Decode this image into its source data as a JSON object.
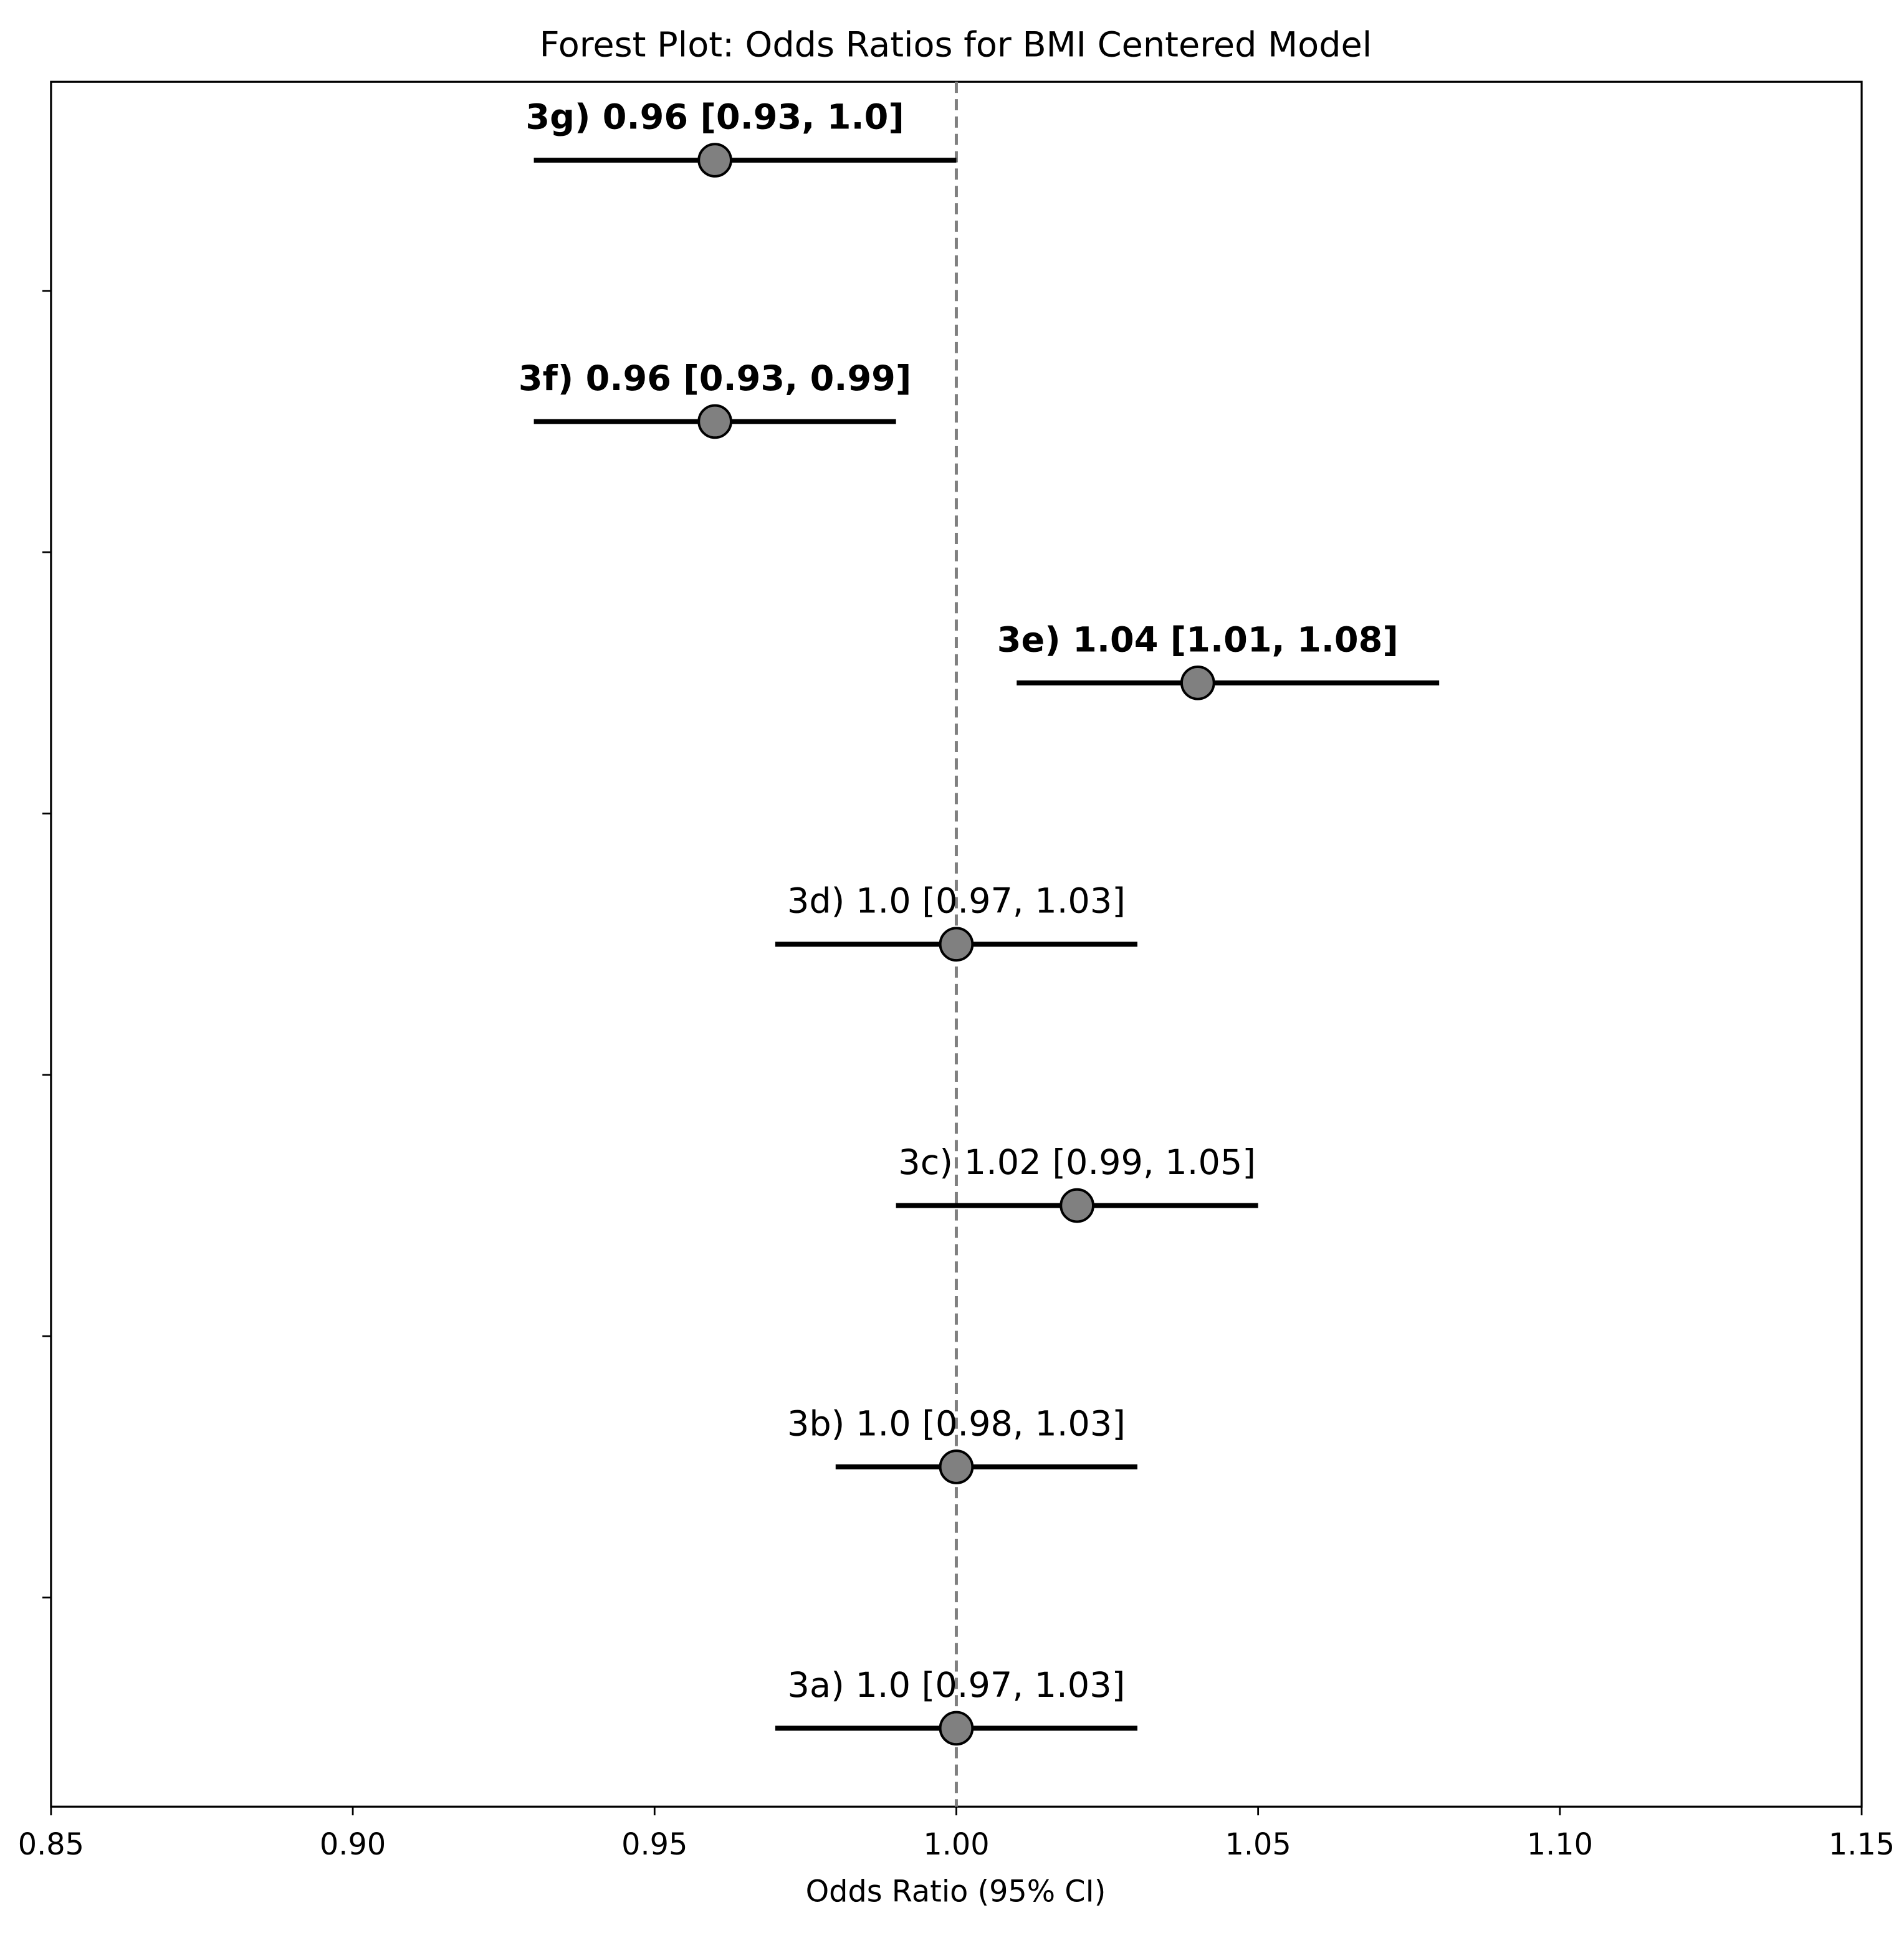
{
  "chart_data": {
    "type": "forest",
    "title": "Forest Plot: Odds Ratios for BMI Centered Model",
    "x_label": "Odds Ratio (95% CI)",
    "labels": [
      "3a) 1.0 [0.97, 1.03]",
      "3b) 1.0 [0.98, 1.03]",
      "3c) 1.02 [0.99, 1.05]",
      "3d) 1.0 [0.97, 1.03]",
      "3e) 1.04 [1.01, 1.08]",
      "3f) 0.96 [0.93, 0.99]",
      "3g) 0.96 [0.93, 1.0]"
    ],
    "bold": [
      false,
      false,
      false,
      false,
      true,
      true,
      true
    ],
    "values": [
      1.0,
      1.0,
      1.02,
      1.0,
      1.04,
      0.96,
      0.96
    ],
    "lower": [
      0.97,
      0.98,
      0.99,
      0.97,
      1.01,
      0.93,
      0.93
    ],
    "upper": [
      1.03,
      1.03,
      1.05,
      1.03,
      1.08,
      0.99,
      1.0
    ],
    "marker_color": "#808080",
    "line_color": "#000000",
    "reference_line": 1,
    "xlim": [
      0.85,
      1.15
    ],
    "xticks": [
      0.85,
      {
        "value": 0.9,
        "label": "0.90"
      },
      0.95,
      {
        "value": 1.0,
        "label": "1.00"
      },
      1.05,
      {
        "value": 1.1,
        "label": "1.10"
      },
      1.15
    ],
    "ylim": [
      -0.3,
      6.3
    ],
    "yticks": [
      0.5,
      1.5,
      2.5,
      3.5,
      4.5,
      5.5
    ]
  }
}
